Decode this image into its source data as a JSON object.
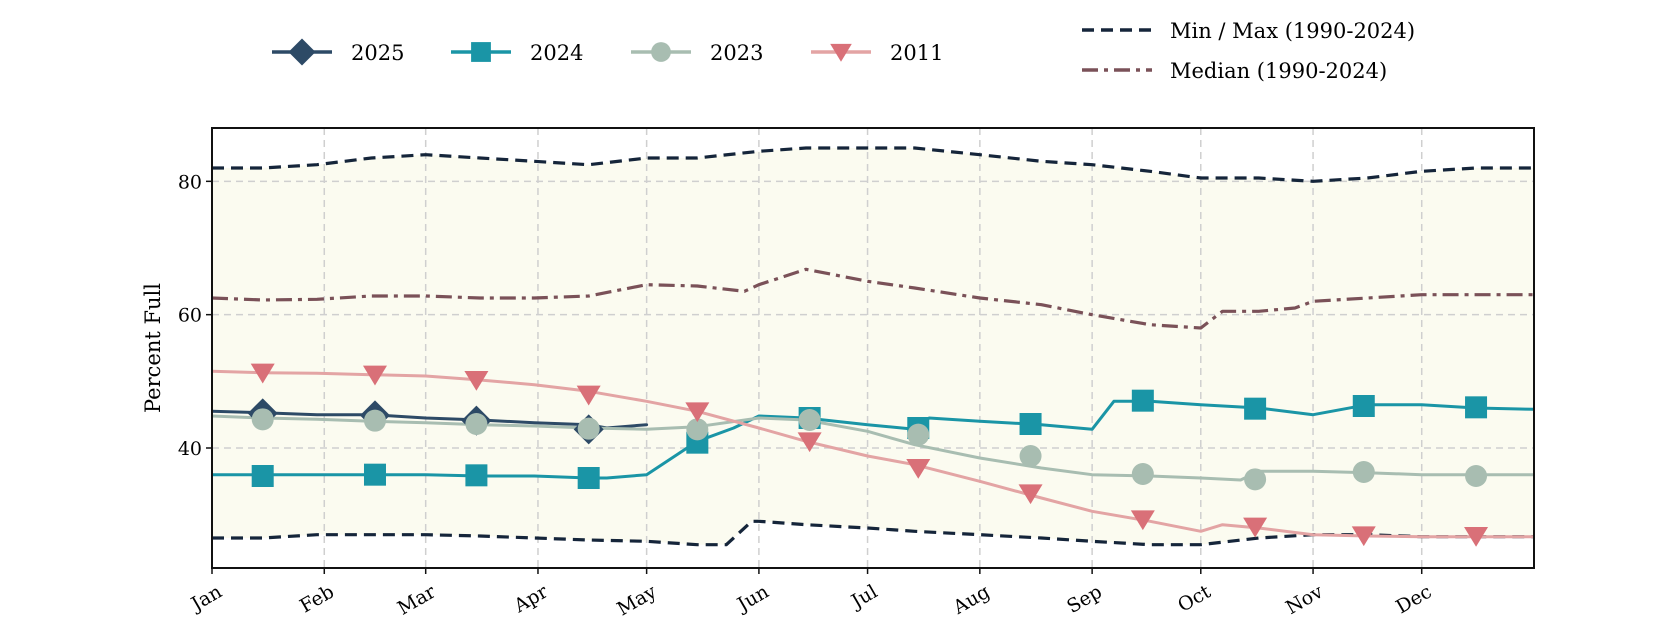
{
  "chart_data": {
    "type": "line",
    "title": "",
    "xlabel": "",
    "ylabel": "Percent Full",
    "ylim": [
      22,
      88
    ],
    "xlim": [
      1,
      366
    ],
    "yticks": [
      40,
      60,
      80
    ],
    "x_tick_labels": [
      {
        "label": "Jan",
        "day": 1
      },
      {
        "label": "Feb",
        "day": 32
      },
      {
        "label": "Mar",
        "day": 60
      },
      {
        "label": "Apr",
        "day": 91
      },
      {
        "label": "May",
        "day": 121
      },
      {
        "label": "Jun",
        "day": 152
      },
      {
        "label": "Jul",
        "day": 182
      },
      {
        "label": "Aug",
        "day": 213
      },
      {
        "label": "Sep",
        "day": 244
      },
      {
        "label": "Oct",
        "day": 274
      },
      {
        "label": "Nov",
        "day": 305
      },
      {
        "label": "Dec",
        "day": 335
      }
    ],
    "grid": true,
    "legend_placement": "top",
    "range_fill_color": "#fbfbf0",
    "series": [
      {
        "name": "Min / Max (1990-2024)",
        "role": "max",
        "style": "dashed",
        "color": "#15253a",
        "x": [
          1,
          15,
          30,
          45,
          60,
          75,
          90,
          105,
          121,
          135,
          152,
          165,
          182,
          195,
          213,
          230,
          244,
          260,
          274,
          290,
          305,
          320,
          335,
          350,
          366
        ],
        "y": [
          82,
          82,
          82.5,
          83.5,
          84,
          83.5,
          83,
          82.5,
          83.5,
          83.5,
          84.5,
          85,
          85,
          85,
          84,
          83,
          82.5,
          81.5,
          80.5,
          80.5,
          80,
          80.5,
          81.5,
          82,
          82
        ]
      },
      {
        "name": "Min / Max (1990-2024)",
        "role": "min",
        "style": "dashed",
        "color": "#15253a",
        "x": [
          1,
          15,
          30,
          45,
          60,
          75,
          90,
          105,
          121,
          135,
          143,
          150,
          152,
          165,
          182,
          195,
          213,
          230,
          244,
          260,
          274,
          290,
          305,
          320,
          335,
          350,
          366
        ],
        "y": [
          26.5,
          26.5,
          27,
          27,
          27,
          26.8,
          26.5,
          26.2,
          26,
          25.5,
          25.5,
          29,
          29,
          28.5,
          28,
          27.5,
          27,
          26.5,
          26,
          25.5,
          25.5,
          26.5,
          27,
          27,
          26.7,
          26.7,
          26.7
        ]
      },
      {
        "name": "Median (1990-2024)",
        "style": "dashdot",
        "color": "#7a5158",
        "x": [
          1,
          15,
          30,
          45,
          60,
          75,
          90,
          105,
          121,
          135,
          148,
          152,
          165,
          182,
          195,
          213,
          230,
          244,
          260,
          274,
          280,
          290,
          300,
          305,
          320,
          335,
          350,
          366
        ],
        "y": [
          62.5,
          62.2,
          62.3,
          62.8,
          62.8,
          62.5,
          62.5,
          62.8,
          64.5,
          64.3,
          63.5,
          64.5,
          66.8,
          65,
          64,
          62.5,
          61.5,
          60,
          58.5,
          58,
          60.5,
          60.5,
          61,
          62,
          62.5,
          63,
          63,
          63
        ]
      },
      {
        "name": "2025",
        "marker": "diamond",
        "color": "#2d4a66",
        "x": [
          1,
          15,
          30,
          45,
          60,
          75,
          90,
          105,
          110,
          121
        ],
        "y": [
          45.5,
          45.3,
          45,
          45,
          44.5,
          44.2,
          43.8,
          43.5,
          43,
          43.5
        ],
        "marker_x": [
          15,
          46,
          74,
          105
        ],
        "marker_y": [
          45.2,
          44.9,
          44.1,
          42.8
        ]
      },
      {
        "name": "2024",
        "marker": "square",
        "color": "#1a95a6",
        "x": [
          1,
          15,
          30,
          45,
          60,
          75,
          90,
          105,
          110,
          121,
          135,
          145,
          152,
          165,
          182,
          195,
          199,
          213,
          230,
          244,
          250,
          260,
          274,
          290,
          305,
          320,
          335,
          350,
          366
        ],
        "y": [
          36,
          36,
          36,
          36,
          36,
          35.8,
          35.8,
          35.5,
          35.5,
          36,
          41,
          43,
          44.8,
          44.5,
          43.5,
          42.8,
          44.5,
          44,
          43.5,
          42.8,
          47,
          47,
          46.5,
          46,
          45,
          46.5,
          46.5,
          46,
          45.8
        ],
        "marker_x": [
          15,
          46,
          74,
          105,
          135,
          166,
          196,
          227,
          258,
          289,
          319,
          350
        ],
        "marker_y": [
          35.8,
          36,
          35.9,
          35.5,
          40.8,
          44.5,
          43,
          43.6,
          47.1,
          45.9,
          46.3,
          46.1
        ]
      },
      {
        "name": "2023",
        "marker": "circle",
        "color": "#a8bdb1",
        "x": [
          1,
          15,
          30,
          45,
          60,
          75,
          90,
          105,
          121,
          135,
          152,
          165,
          182,
          195,
          213,
          230,
          244,
          260,
          274,
          285,
          290,
          305,
          320,
          335,
          350,
          366
        ],
        "y": [
          44.8,
          44.5,
          44.3,
          44,
          43.8,
          43.5,
          43.3,
          43,
          42.8,
          43.2,
          44.5,
          44.2,
          42.5,
          40.5,
          38.5,
          37,
          36,
          35.8,
          35.5,
          35.2,
          36.5,
          36.5,
          36.3,
          36,
          36,
          36
        ],
        "marker_x": [
          15,
          46,
          74,
          105,
          135,
          166,
          196,
          227,
          258,
          289,
          319,
          350
        ],
        "marker_y": [
          44.3,
          44.1,
          43.6,
          42.9,
          42.8,
          44.2,
          42,
          38.8,
          36.1,
          35.3,
          36.4,
          35.8
        ]
      },
      {
        "name": "2011",
        "marker": "triangle-down",
        "color": "#d97078",
        "line_color": "#e3a4a4",
        "x": [
          1,
          15,
          30,
          45,
          60,
          75,
          90,
          105,
          121,
          135,
          152,
          165,
          182,
          195,
          213,
          230,
          244,
          260,
          274,
          280,
          290,
          305,
          320,
          335,
          350,
          366
        ],
        "y": [
          51.5,
          51.3,
          51.2,
          51,
          50.8,
          50.2,
          49.5,
          48.5,
          47,
          45.5,
          43,
          41,
          38.8,
          37.5,
          35,
          32.5,
          30.5,
          29,
          27.5,
          28.5,
          28,
          27,
          26.8,
          26.7,
          26.7,
          26.7
        ],
        "marker_x": [
          15,
          46,
          74,
          105,
          135,
          166,
          196,
          227,
          258,
          289,
          319,
          350
        ],
        "marker_y": [
          51.3,
          51,
          50.2,
          48,
          45.5,
          41,
          37,
          33.2,
          29.3,
          28.2,
          26.9,
          26.8
        ]
      }
    ]
  },
  "legend": {
    "items": [
      {
        "label": "2025"
      },
      {
        "label": "2024"
      },
      {
        "label": "2023"
      },
      {
        "label": "2011"
      },
      {
        "label": "Min / Max (1990-2024)"
      },
      {
        "label": "Median (1990-2024)"
      }
    ]
  }
}
